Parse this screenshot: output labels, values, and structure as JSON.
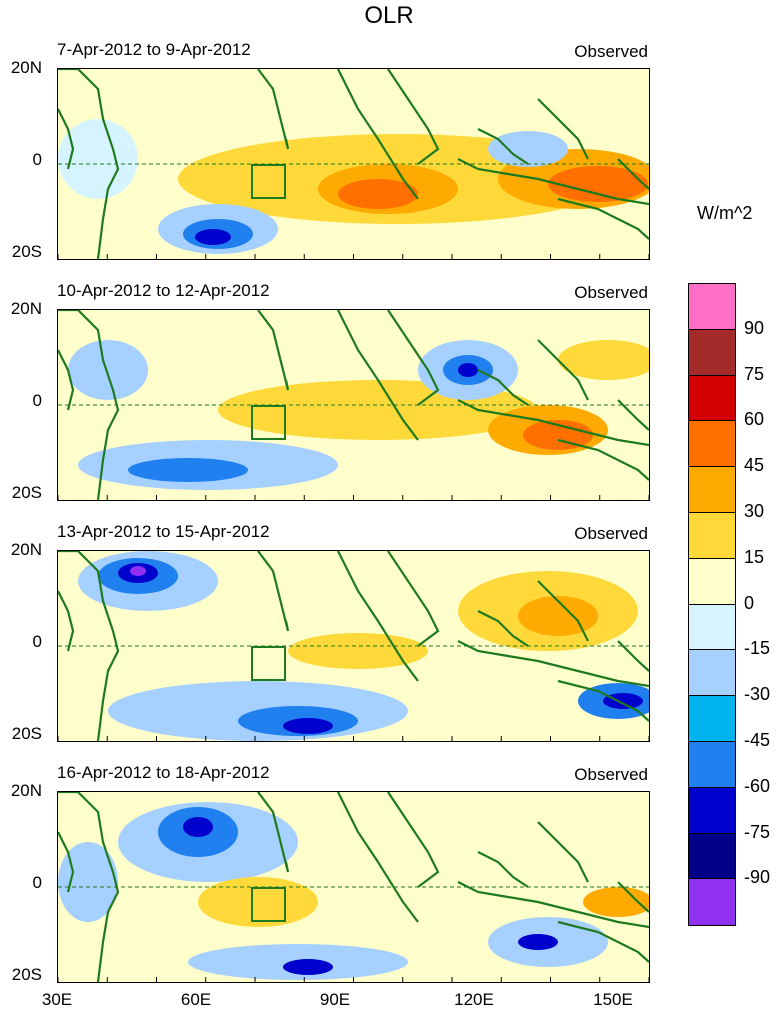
{
  "title": "OLR",
  "units": "W/m^2",
  "panels": [
    {
      "dates": "7-Apr-2012 to 9-Apr-2012",
      "label": "Observed"
    },
    {
      "dates": "10-Apr-2012 to 12-Apr-2012",
      "label": "Observed"
    },
    {
      "dates": "13-Apr-2012 to 15-Apr-2012",
      "label": "Observed"
    },
    {
      "dates": "16-Apr-2012 to 18-Apr-2012",
      "label": "Observed"
    }
  ],
  "lat_labels": [
    "20N",
    "0",
    "20S"
  ],
  "lon_labels": [
    "30E",
    "60E",
    "90E",
    "120E",
    "150E"
  ],
  "colorbar": {
    "labels": [
      "90",
      "75",
      "60",
      "45",
      "30",
      "15",
      "0",
      "-15",
      "-30",
      "-45",
      "-60",
      "-75",
      "-90"
    ],
    "colors": [
      "#ff6fc8",
      "#a52a2a",
      "#d40000",
      "#ff7000",
      "#ffaa00",
      "#ffd83a",
      "#ffffcc",
      "#d6f4ff",
      "#a6d0ff",
      "#00b4f0",
      "#2080f0",
      "#0000cc",
      "#000088",
      "#9030f0"
    ]
  },
  "palette": {
    "land_outline": "#1e7a1e",
    "equator": "#1e7a1e"
  }
}
